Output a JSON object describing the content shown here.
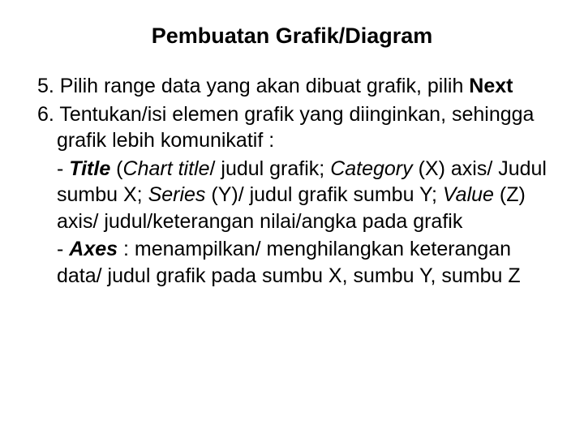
{
  "title": "Pembuatan Grafik/Diagram",
  "p5_a": "5. Pilih range data yang akan dibuat grafik, pilih ",
  "p5_b": "Next",
  "p6_a": "6. Tentukan/isi elemen grafik yang diinginkan, sehingga grafik lebih komunikatif :",
  "t_a": "- ",
  "t_b": "Title",
  "t_c": " (",
  "t_d": "Chart title",
  "t_e": "/ judul grafik; ",
  "t_f": "Category",
  "t_g": " (X) axis/ Judul sumbu X; ",
  "t_h": "Series",
  "t_i": " (Y)/ judul grafik sumbu Y; ",
  "t_j": "Value",
  "t_k": " (Z) axis/ judul/keterangan nilai/angka pada grafik",
  "a_a": "- ",
  "a_b": "Axes",
  "a_c": " : menampilkan/ menghilangkan keterangan data/ judul grafik pada sumbu X, sumbu Y, sumbu Z"
}
